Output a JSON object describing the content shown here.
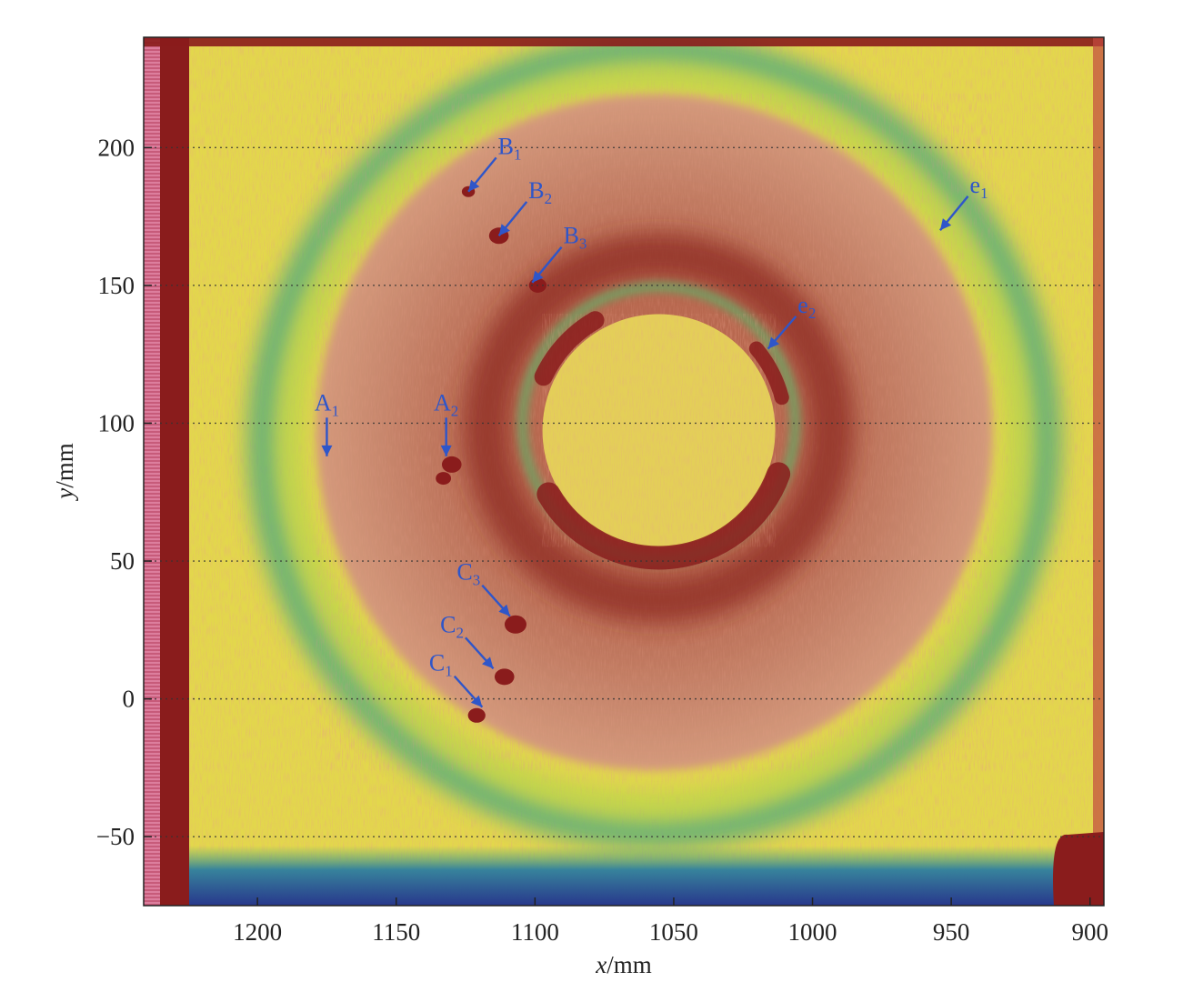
{
  "chart_data": {
    "type": "heatmap",
    "title": "",
    "xlabel_var": "x",
    "xlabel_unit": "/mm",
    "ylabel_var": "y",
    "ylabel_unit": "/mm",
    "xlim": [
      1241,
      895
    ],
    "ylim": [
      -75,
      240
    ],
    "x_ticks": [
      1200,
      1150,
      1100,
      1050,
      1000,
      950,
      900
    ],
    "y_ticks": [
      -50,
      0,
      50,
      100,
      150,
      200
    ],
    "grid": "dotted horizontal lines at y ticks",
    "colormap": [
      "#1e2f8f",
      "#2e7fa0",
      "#3ea87e",
      "#c9d84a",
      "#e6df4c",
      "#d9a24a",
      "#c7826a",
      "#b8614a",
      "#8a1c1c"
    ],
    "annotations": [
      {
        "base": "B",
        "sub": "1",
        "point": [
          1124,
          184
        ]
      },
      {
        "base": "B",
        "sub": "2",
        "point": [
          1113,
          168
        ]
      },
      {
        "base": "B",
        "sub": "3",
        "point": [
          1101,
          151
        ]
      },
      {
        "base": "e",
        "sub": "1",
        "point": [
          954,
          170
        ]
      },
      {
        "base": "e",
        "sub": "2",
        "point": [
          1016,
          127
        ]
      },
      {
        "base": "A",
        "sub": "1",
        "point": [
          1175,
          88
        ]
      },
      {
        "base": "A",
        "sub": "2",
        "point": [
          1132,
          88
        ]
      },
      {
        "base": "C",
        "sub": "3",
        "point": [
          1109,
          30
        ]
      },
      {
        "base": "C",
        "sub": "2",
        "point": [
          1115,
          11
        ]
      },
      {
        "base": "C",
        "sub": "1",
        "point": [
          1119,
          -3
        ]
      }
    ]
  },
  "colors": {
    "annotation": "#2f56c9",
    "edge_band": "#8a1c1c",
    "background_noise": "#e6df4c"
  }
}
